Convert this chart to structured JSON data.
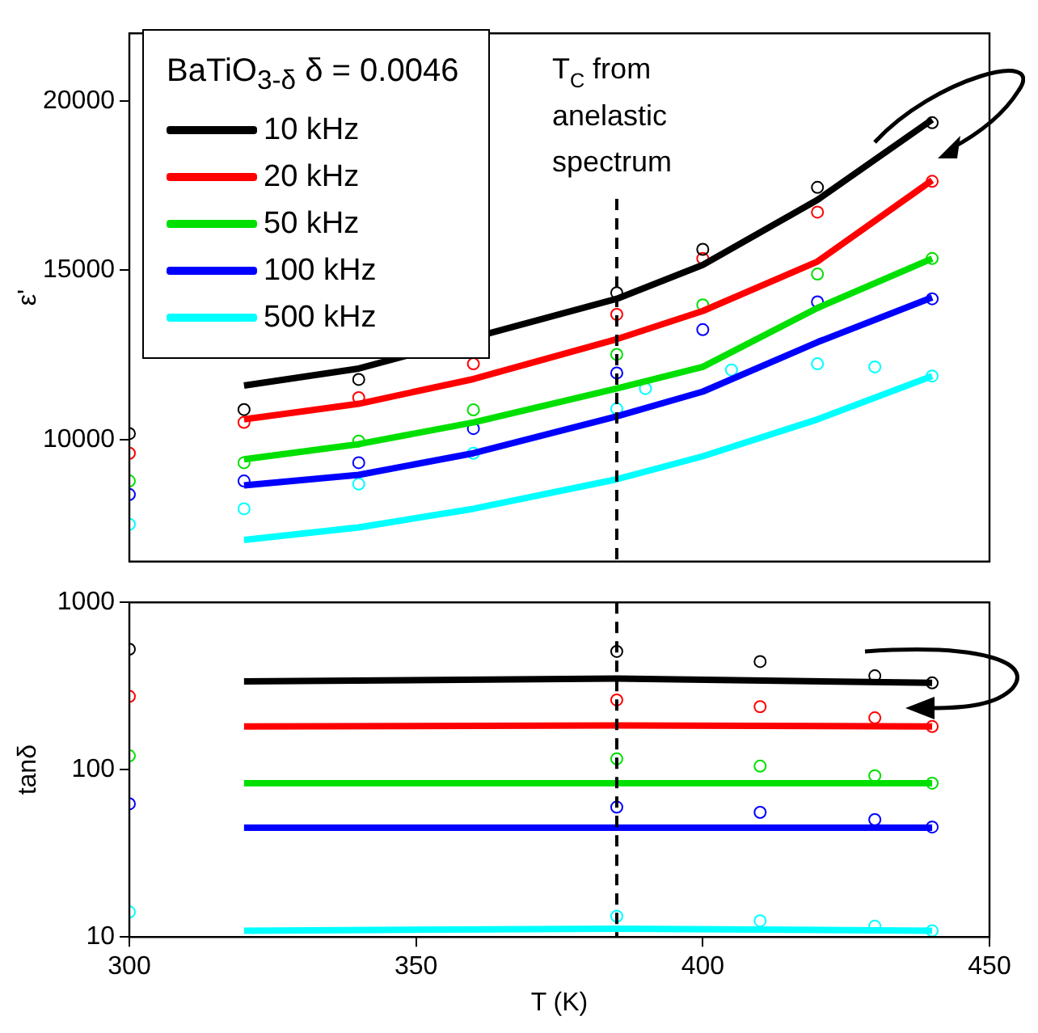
{
  "chart_data": [
    {
      "type": "line",
      "ylabel": "ε'",
      "xlim": [
        300,
        450
      ],
      "ylim": [
        6400,
        22000
      ],
      "yticks": [
        10000,
        15000,
        20000
      ],
      "tick_labels": "y",
      "legend": "top left",
      "legend_title": "BaTiO$_{3-δ}$  δ = 0.0046",
      "ref_lines": [
        {
          "axis": "x",
          "value": 385,
          "label": "T$_{C}$ from anelastic spectrum",
          "line_style": "dashed",
          "color": "#000000"
        }
      ],
      "series": [
        {
          "name": "10 kHz",
          "color": "#000000",
          "x": [
            320,
            340,
            360,
            385,
            400,
            420,
            440
          ],
          "values": [
            11600,
            12100,
            null,
            14160,
            15160,
            17080,
            19450
          ]
        },
        {
          "type": "scatter",
          "marker": "circle",
          "color": "#000000",
          "x": [
            440,
            420,
            400,
            385,
            360,
            340,
            320,
            300
          ],
          "values": [
            19360,
            17450,
            15620,
            14340,
            null,
            11780,
            10890,
            10180
          ]
        },
        {
          "name": "20 kHz",
          "color": "#ff0000",
          "x": [
            320,
            340,
            360,
            385,
            400,
            420,
            440
          ],
          "values": [
            10600,
            11060,
            11790,
            12970,
            13800,
            15260,
            17660
          ]
        },
        {
          "type": "scatter",
          "marker": "circle",
          "color": "#ff0000",
          "x": [
            440,
            420,
            400,
            385,
            360,
            340,
            320,
            300
          ],
          "values": [
            17630,
            16720,
            15350,
            13700,
            12240,
            11240,
            10510,
            9600
          ]
        },
        {
          "name": "50 kHz",
          "color": "#00e000",
          "x": [
            320,
            340,
            360,
            385,
            400,
            420,
            440
          ],
          "values": [
            9420,
            9870,
            10510,
            11510,
            12150,
            13890,
            15350
          ]
        },
        {
          "type": "scatter",
          "marker": "circle",
          "color": "#00e000",
          "x": [
            440,
            420,
            400,
            385,
            360,
            340,
            320,
            300
          ],
          "values": [
            15350,
            14890,
            13980,
            12520,
            10880,
            9960,
            9320,
            8780
          ]
        },
        {
          "name": "100 kHz",
          "color": "#0000ff",
          "x": [
            320,
            340,
            360,
            385,
            400,
            420,
            440
          ],
          "values": [
            8650,
            8960,
            9600,
            10690,
            11420,
            12880,
            14200
          ]
        },
        {
          "type": "scatter",
          "marker": "circle",
          "color": "#0000ff",
          "x": [
            440,
            420,
            400,
            385,
            360,
            340,
            320,
            300
          ],
          "values": [
            14160,
            14070,
            13250,
            11970,
            10330,
            9320,
            8780,
            8380
          ]
        },
        {
          "name": "500 kHz",
          "color": "#00ffff",
          "x": [
            320,
            340,
            360,
            385,
            400,
            420,
            440
          ],
          "values": [
            7040,
            7410,
            7960,
            8830,
            9510,
            10600,
            11880
          ]
        },
        {
          "type": "scatter",
          "marker": "circle",
          "color": "#00ffff",
          "x": [
            440,
            430,
            420,
            405,
            390,
            385,
            360,
            340,
            320,
            300
          ],
          "values": [
            11880,
            12150,
            12240,
            12060,
            11510,
            10910,
            9600,
            8690,
            7960,
            7500
          ]
        }
      ]
    },
    {
      "type": "line",
      "xlabel": "T (K)",
      "ylabel": "tanδ",
      "xlim": [
        300,
        450
      ],
      "xticks": [
        300,
        350,
        400,
        450
      ],
      "ylim": [
        10,
        1000
      ],
      "yticks": [
        10,
        100,
        1000
      ],
      "log": true,
      "ref_lines": [
        {
          "axis": "x",
          "value": 385,
          "line_style": "dashed",
          "color": "#000000"
        }
      ],
      "series": [
        {
          "color": "#000000",
          "x": [
            320,
            385,
            440
          ],
          "values": [
            337,
            350,
            330
          ]
        },
        {
          "type": "scatter",
          "marker": "circle",
          "color": "#000000",
          "x": [
            440,
            430,
            410,
            385,
            300
          ],
          "values": [
            330,
            364,
            443,
            509,
            525
          ]
        },
        {
          "color": "#ff0000",
          "x": [
            320,
            385,
            440
          ],
          "values": [
            181,
            184,
            181
          ]
        },
        {
          "type": "scatter",
          "marker": "circle",
          "color": "#ff0000",
          "x": [
            440,
            430,
            410,
            385,
            300
          ],
          "values": [
            181,
            204,
            238,
            261,
            274
          ]
        },
        {
          "color": "#00e000",
          "x": [
            320,
            385,
            440
          ],
          "values": [
            83,
            83,
            83
          ]
        },
        {
          "type": "scatter",
          "marker": "circle",
          "color": "#00e000",
          "x": [
            440,
            430,
            410,
            385,
            300
          ],
          "values": [
            83,
            92,
            105,
            116,
            121
          ]
        },
        {
          "color": "#0000ff",
          "x": [
            320,
            385,
            440
          ],
          "values": [
            45,
            45,
            45
          ]
        },
        {
          "type": "scatter",
          "marker": "circle",
          "color": "#0000ff",
          "x": [
            440,
            430,
            410,
            385,
            300
          ],
          "values": [
            45.4,
            50.3,
            55.6,
            59.7,
            62.5
          ]
        },
        {
          "color": "#00ffff",
          "x": [
            320,
            385,
            440
          ],
          "values": [
            10.9,
            11.2,
            10.9
          ]
        },
        {
          "type": "scatter",
          "marker": "circle",
          "color": "#00ffff",
          "x": [
            440,
            430,
            410,
            385,
            300
          ],
          "values": [
            10.9,
            11.6,
            12.5,
            13.3,
            14.1
          ]
        }
      ]
    }
  ]
}
